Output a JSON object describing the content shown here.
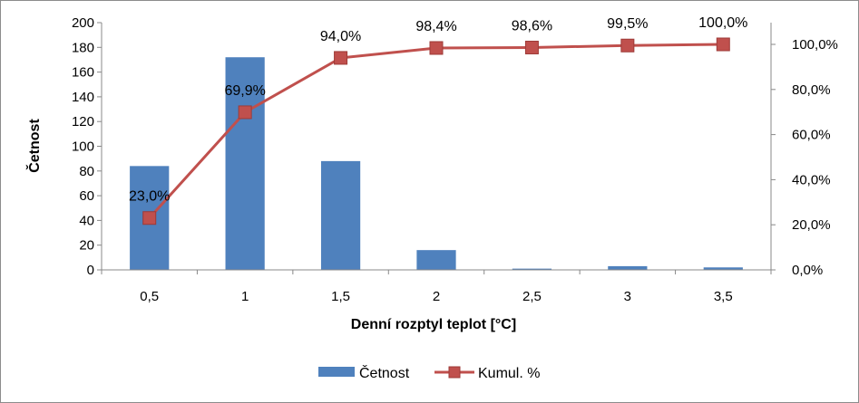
{
  "chart_data": {
    "type": "bar",
    "categories": [
      "0,5",
      "1",
      "1,5",
      "2",
      "2,5",
      "3",
      "3,5"
    ],
    "series": [
      {
        "name": "Četnost",
        "type": "bar",
        "axis": "left",
        "color": "#4f81bd",
        "values": [
          84,
          172,
          88,
          16,
          1,
          3,
          2
        ]
      },
      {
        "name": "Kumul. %",
        "type": "line",
        "axis": "right",
        "color": "#c0504d",
        "values": [
          23.0,
          69.9,
          94.0,
          98.4,
          98.6,
          99.5,
          100.0
        ],
        "labels": [
          "23,0%",
          "69,9%",
          "94,0%",
          "98,4%",
          "98,6%",
          "99,5%",
          "100,0%"
        ]
      }
    ],
    "xlabel": "Denní rozptyl teplot [°C]",
    "ylabel": "Četnost",
    "ylim": [
      0,
      200
    ],
    "yticks": [
      "0",
      "20",
      "40",
      "60",
      "80",
      "100",
      "120",
      "140",
      "160",
      "180",
      "200"
    ],
    "y2lim": [
      0,
      110
    ],
    "y2ticks": [
      "0,0%",
      "20,0%",
      "40,0%",
      "60,0%",
      "80,0%",
      "100,0%"
    ],
    "grid": false,
    "legend_position": "bottom"
  }
}
